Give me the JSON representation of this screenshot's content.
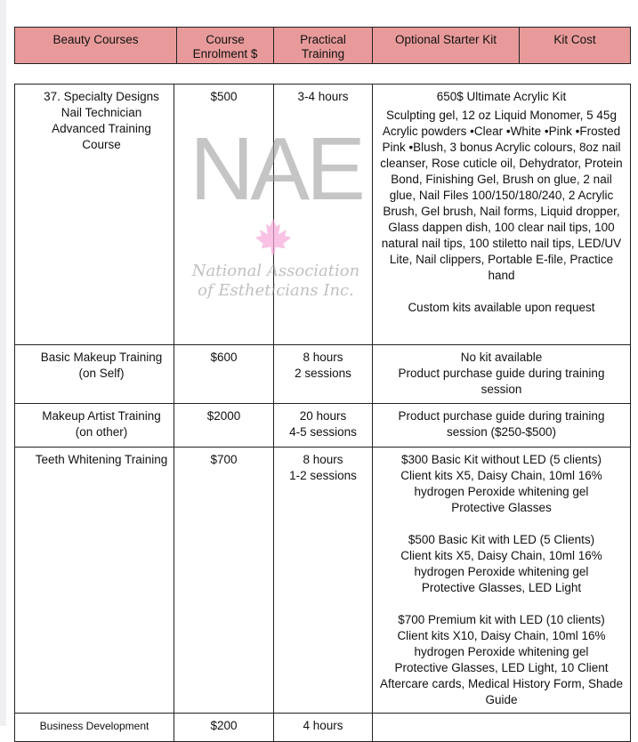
{
  "header": [
    "Beauty Courses",
    "Course\nEnrolment $",
    "Practical\nTraining",
    "Optional Starter Kit",
    "Kit Cost"
  ],
  "rows": [
    {
      "course": "37. Specialty Designs Nail Technician Advanced Training Course",
      "fee": "$500",
      "training": "3-4 hours",
      "kit": [
        "650$ Ultimate Acrylic Kit",
        "Sculpting gel, 12 oz  Liquid Monomer, 5 45g Acrylic powders •Clear •White •Pink •Frosted Pink •Blush, 3 bonus Acrylic colours, 8oz nail cleanser, Rose cuticle oil, Dehydrator, Protein Bond, Finishing Gel, Brush on glue, 2 nail glue, Nail Files 100/150/180/240, 2 Acrylic Brush, Gel brush, Nail forms, Liquid dropper, Glass dappen dish, 100  clear nail tips, 100 natural nail tips, 100  stiletto nail tips, LED/UV Lite, Nail clippers, Portable E-file, Practice hand",
        "",
        "Custom kits available upon request"
      ]
    },
    {
      "course": "Basic Makeup Training (on Self)",
      "fee": "$600",
      "training": "8 hours\n2 sessions",
      "kit": [
        "No kit available",
        "Product purchase guide during training session"
      ]
    },
    {
      "course": "Makeup Artist Training (on other)",
      "fee": "$2000",
      "training": "20 hours\n4-5 sessions",
      "kit": [
        "Product purchase guide during training session ($250-$500)"
      ]
    },
    {
      "course": "Teeth Whitening Training",
      "fee": "$700",
      "training": "8 hours\n1-2 sessions",
      "kit": [
        "$300 Basic Kit without LED (5 clients)",
        "Client kits X5, Daisy Chain, 10ml 16% hydrogen Peroxide whitening gel",
        "Protective Glasses",
        "",
        "$500 Basic Kit with LED (5 Clients)",
        "Client kits X5, Daisy Chain, 10ml 16% hydrogen Peroxide whitening gel",
        "Protective Glasses, LED Light",
        "",
        "$700 Premium kit with LED (10 clients)",
        "Client kits X10, Daisy Chain, 10ml 16% hydrogen Peroxide whitening gel",
        "Protective Glasses, LED Light, 10 Client Aftercare cards, Medical History Form, Shade Guide"
      ]
    },
    {
      "course": "Business Development",
      "fee": "$200",
      "training": "4 hours",
      "kit": []
    }
  ],
  "watermark": {
    "logo": "NAE",
    "tagline": "National Association of Estheticians Inc.",
    "leaf_color": "#f6a8d8"
  }
}
